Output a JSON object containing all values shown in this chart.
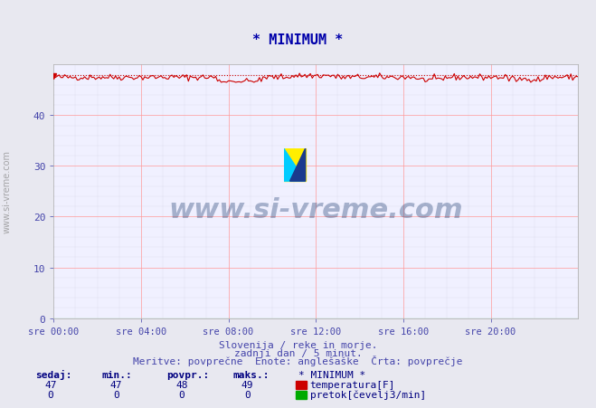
{
  "title": "* MINIMUM *",
  "title_color": "#0000aa",
  "bg_color": "#e8e8f0",
  "plot_bg_color": "#f0f0ff",
  "grid_color_major": "#ff9999",
  "grid_color_minor": "#ddddee",
  "xlim": [
    0,
    288
  ],
  "ylim": [
    0,
    50
  ],
  "yticks": [
    0,
    10,
    20,
    30,
    40
  ],
  "xtick_labels": [
    "sre 00:00",
    "sre 04:00",
    "sre 08:00",
    "sre 12:00",
    "sre 16:00",
    "sre 20:00"
  ],
  "xtick_positions": [
    0,
    48,
    96,
    144,
    192,
    240
  ],
  "temp_mean": 48,
  "temp_color": "#cc0000",
  "flow_color": "#00aa00",
  "watermark_text": "www.si-vreme.com",
  "watermark_color": "#1a3a6e",
  "watermark_alpha": 0.35,
  "subtitle1": "Slovenija / reke in morje.",
  "subtitle2": "zadnji dan / 5 minut.",
  "subtitle3": "Meritve: povprečne  Enote: anglešaške  Črta: povprečje",
  "subtitle_color": "#4444aa",
  "table_header": [
    "sedaj:",
    "min.:",
    "povpr.:",
    "maks.:",
    "* MINIMUM *"
  ],
  "table_row1": [
    "47",
    "47",
    "48",
    "49",
    "temperatura[F]"
  ],
  "table_row2": [
    "0",
    "0",
    "0",
    "0",
    "pretok[čevelj3/min]"
  ],
  "table_color": "#000080",
  "ylabel_text": "www.si-vreme.com",
  "ylabel_color": "#888888"
}
